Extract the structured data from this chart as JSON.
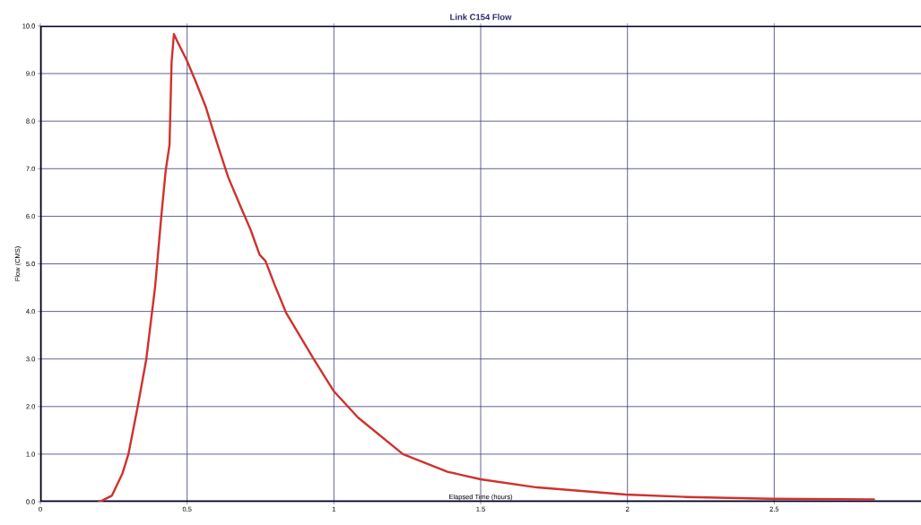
{
  "chart_data": {
    "type": "line",
    "title": "Link C154 Flow",
    "xlabel": "Elapsed Time (hours)",
    "ylabel": "Flow (CMS)",
    "xlim": [
      0,
      3
    ],
    "ylim": [
      0,
      10
    ],
    "xticks": [
      0,
      0.5,
      1,
      1.5,
      2,
      2.5
    ],
    "yticks": [
      {
        "value": 0,
        "label": "0.0"
      },
      {
        "value": 1,
        "label": "1.0"
      },
      {
        "value": 2,
        "label": "2.0"
      },
      {
        "value": 3,
        "label": "3.0"
      },
      {
        "value": 4,
        "label": "4.0"
      },
      {
        "value": 5,
        "label": "5.0"
      },
      {
        "value": 6,
        "label": "6.0"
      },
      {
        "value": 7,
        "label": "7.0"
      },
      {
        "value": 8,
        "label": "8.0"
      },
      {
        "value": 9,
        "label": "9.0"
      },
      {
        "value": 10,
        "label": "10.0"
      }
    ],
    "grid": true,
    "series": [
      {
        "color": "#d0312d",
        "x": [
          0.2,
          0.21,
          0.244,
          0.28,
          0.3,
          0.332,
          0.361,
          0.391,
          0.412,
          0.427,
          0.44,
          0.447,
          0.455,
          0.467,
          0.498,
          0.528,
          0.564,
          0.589,
          0.615,
          0.64,
          0.681,
          0.716,
          0.747,
          0.767,
          0.798,
          0.838,
          0.93,
          1.0,
          1.082,
          1.235,
          1.387,
          1.5,
          1.692,
          1.994,
          2.2,
          2.49,
          2.84
        ],
        "values": [
          0,
          0.02,
          0.13,
          0.6,
          1.0,
          2.01,
          3.0,
          4.52,
          6.0,
          6.96,
          7.5,
          9.23,
          9.83,
          9.67,
          9.29,
          8.85,
          8.29,
          7.79,
          7.29,
          6.82,
          6.22,
          5.72,
          5.19,
          5.06,
          4.56,
          3.96,
          3.01,
          2.32,
          1.77,
          1.0,
          0.63,
          0.47,
          0.3,
          0.15,
          0.1,
          0.06,
          0.05
        ]
      }
    ]
  }
}
